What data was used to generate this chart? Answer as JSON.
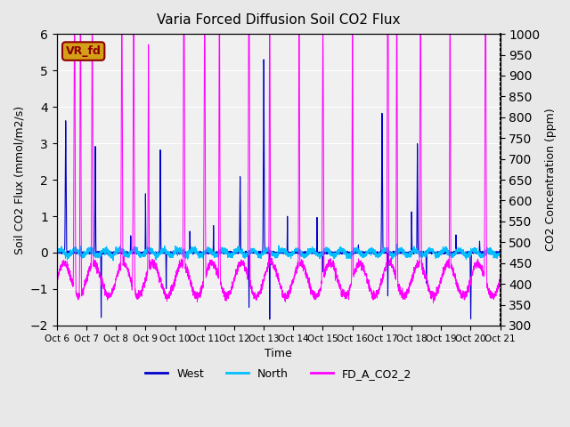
{
  "title": "Varia Forced Diffusion Soil CO2 Flux",
  "xlabel": "Time",
  "ylabel_left": "Soil CO2 Flux (mmol/m2/s)",
  "ylabel_right": "CO2 Concentration (ppm)",
  "ylim_left": [
    -2.0,
    6.0
  ],
  "ylim_right": [
    300,
    1000
  ],
  "xtick_labels": [
    "Oct 6",
    "Oct 7",
    "Oct 8",
    "Oct 9",
    "Oct 10",
    "Oct 11",
    "Oct 12",
    "Oct 13",
    "Oct 14",
    "Oct 15",
    "Oct 16",
    "Oct 17",
    "Oct 18",
    "Oct 19",
    "Oct 20",
    "Oct 21"
  ],
  "yticks_left": [
    -2.0,
    -1.0,
    0.0,
    1.0,
    2.0,
    3.0,
    4.0,
    5.0,
    6.0
  ],
  "yticks_right": [
    300,
    350,
    400,
    450,
    500,
    550,
    600,
    650,
    700,
    750,
    800,
    850,
    900,
    950,
    1000
  ],
  "background_color": "#e8e8e8",
  "plot_bg_color": "#f0f0f0",
  "grid_color": "#ffffff",
  "west_color": "#0000cd",
  "north_color": "#00bfff",
  "co2_color": "#ff00ff",
  "label_box_color": "#d4a017",
  "label_box_text": "VR_fd",
  "legend_items": [
    "West",
    "North",
    "FD_A_CO2_2"
  ],
  "num_points": 3600,
  "days": 15
}
